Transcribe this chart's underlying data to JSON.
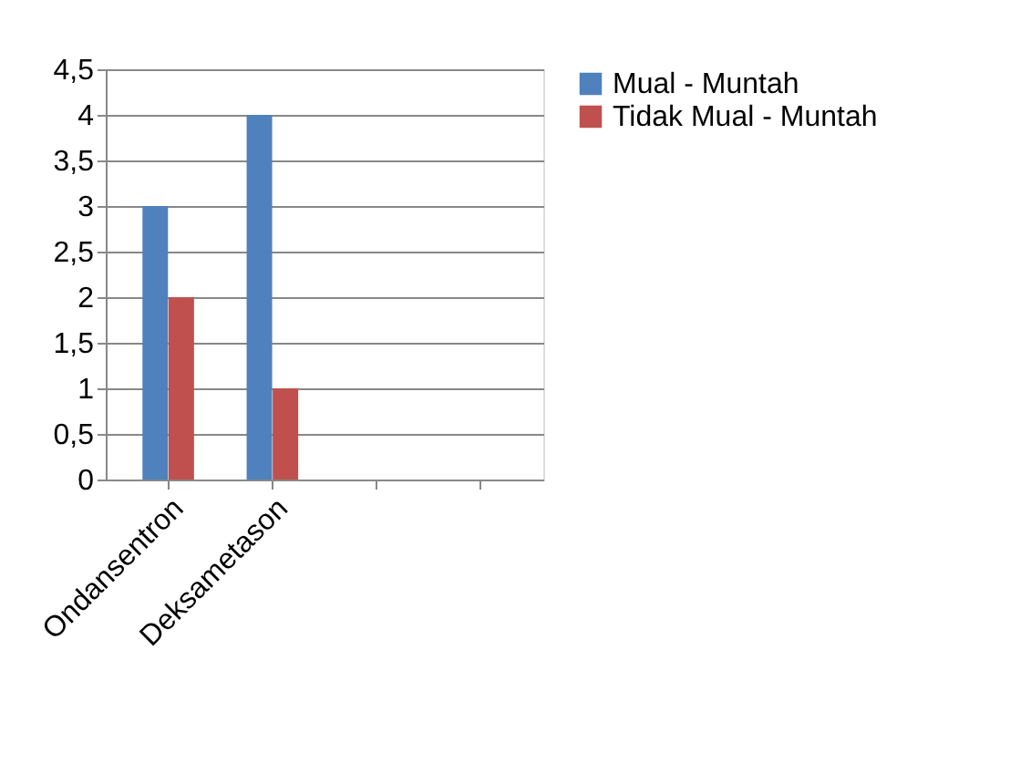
{
  "chart_data": {
    "type": "bar",
    "categories": [
      "Ondansentron",
      "Deksametason",
      null,
      null
    ],
    "series": [
      {
        "name": "Mual - Muntah",
        "color": "#4f81bd",
        "values": [
          3,
          4,
          null,
          null
        ]
      },
      {
        "name": "Tidak Mual - Muntah",
        "color": "#c0504d",
        "values": [
          2,
          1,
          null,
          null
        ]
      }
    ],
    "ylim": [
      0,
      4.5
    ],
    "yticks": [
      0,
      {
        "value": 0.5,
        "label": "0,5"
      },
      1,
      {
        "value": 1.5,
        "label": "1,5"
      },
      2,
      {
        "value": 2.5,
        "label": "2,5"
      },
      3,
      {
        "value": 3.5,
        "label": "3,5"
      },
      4,
      {
        "value": 4.5,
        "label": "4,5"
      }
    ],
    "grid": "y",
    "legend": "right"
  }
}
